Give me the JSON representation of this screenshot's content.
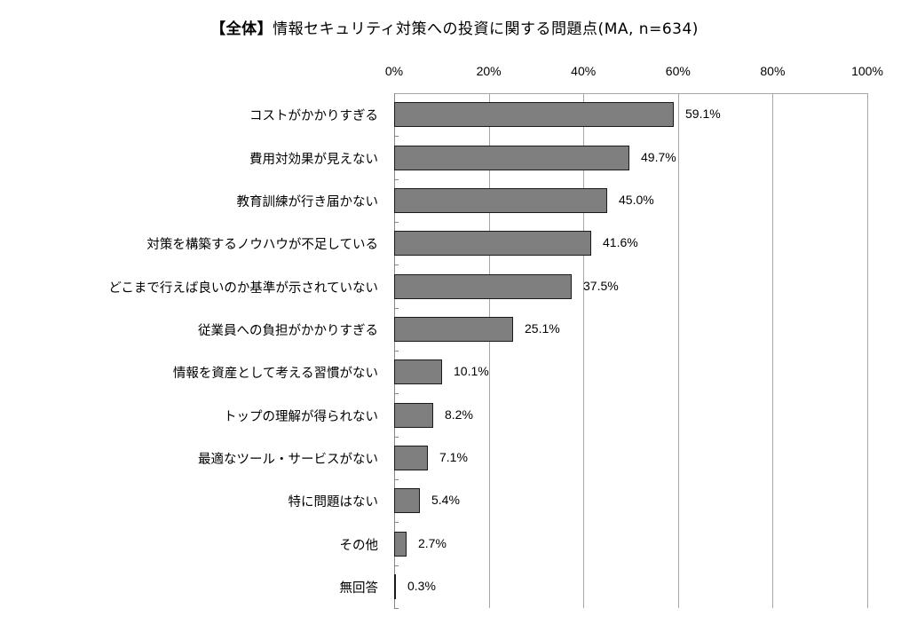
{
  "chart_data": {
    "type": "bar",
    "orientation": "horizontal",
    "title": "【全体】情報セキュリティ対策への投資に関する問題点(MA, n=634)",
    "title_lead": "【全体】",
    "title_rest": "情報セキュリティ対策への投資に関する問題点(MA, n=634)",
    "xlabel": "",
    "ylabel": "",
    "xlim": [
      0,
      100
    ],
    "x_ticks": [
      "0%",
      "20%",
      "40%",
      "60%",
      "80%",
      "100%"
    ],
    "x_tick_position": "top",
    "grid": true,
    "legend": null,
    "bar_color": "#7f7f7f",
    "categories": [
      "コストがかかりすぎる",
      "費用対効果が見えない",
      "教育訓練が行き届かない",
      "対策を構築するノウハウが不足している",
      "どこまで行えば良いのか基準が示されていない",
      "従業員への負担がかかりすぎる",
      "情報を資産として考える習慣がない",
      "トップの理解が得られない",
      "最適なツール・サービスがない",
      "特に問題はない",
      "その他",
      "無回答"
    ],
    "values": [
      59.1,
      49.7,
      45.0,
      41.6,
      37.5,
      25.1,
      10.1,
      8.2,
      7.1,
      5.4,
      2.7,
      0.3
    ],
    "value_labels": [
      "59.1%",
      "49.7%",
      "45.0%",
      "41.6%",
      "37.5%",
      "25.1%",
      "10.1%",
      "8.2%",
      "7.1%",
      "5.4%",
      "2.7%",
      "0.3%"
    ]
  }
}
